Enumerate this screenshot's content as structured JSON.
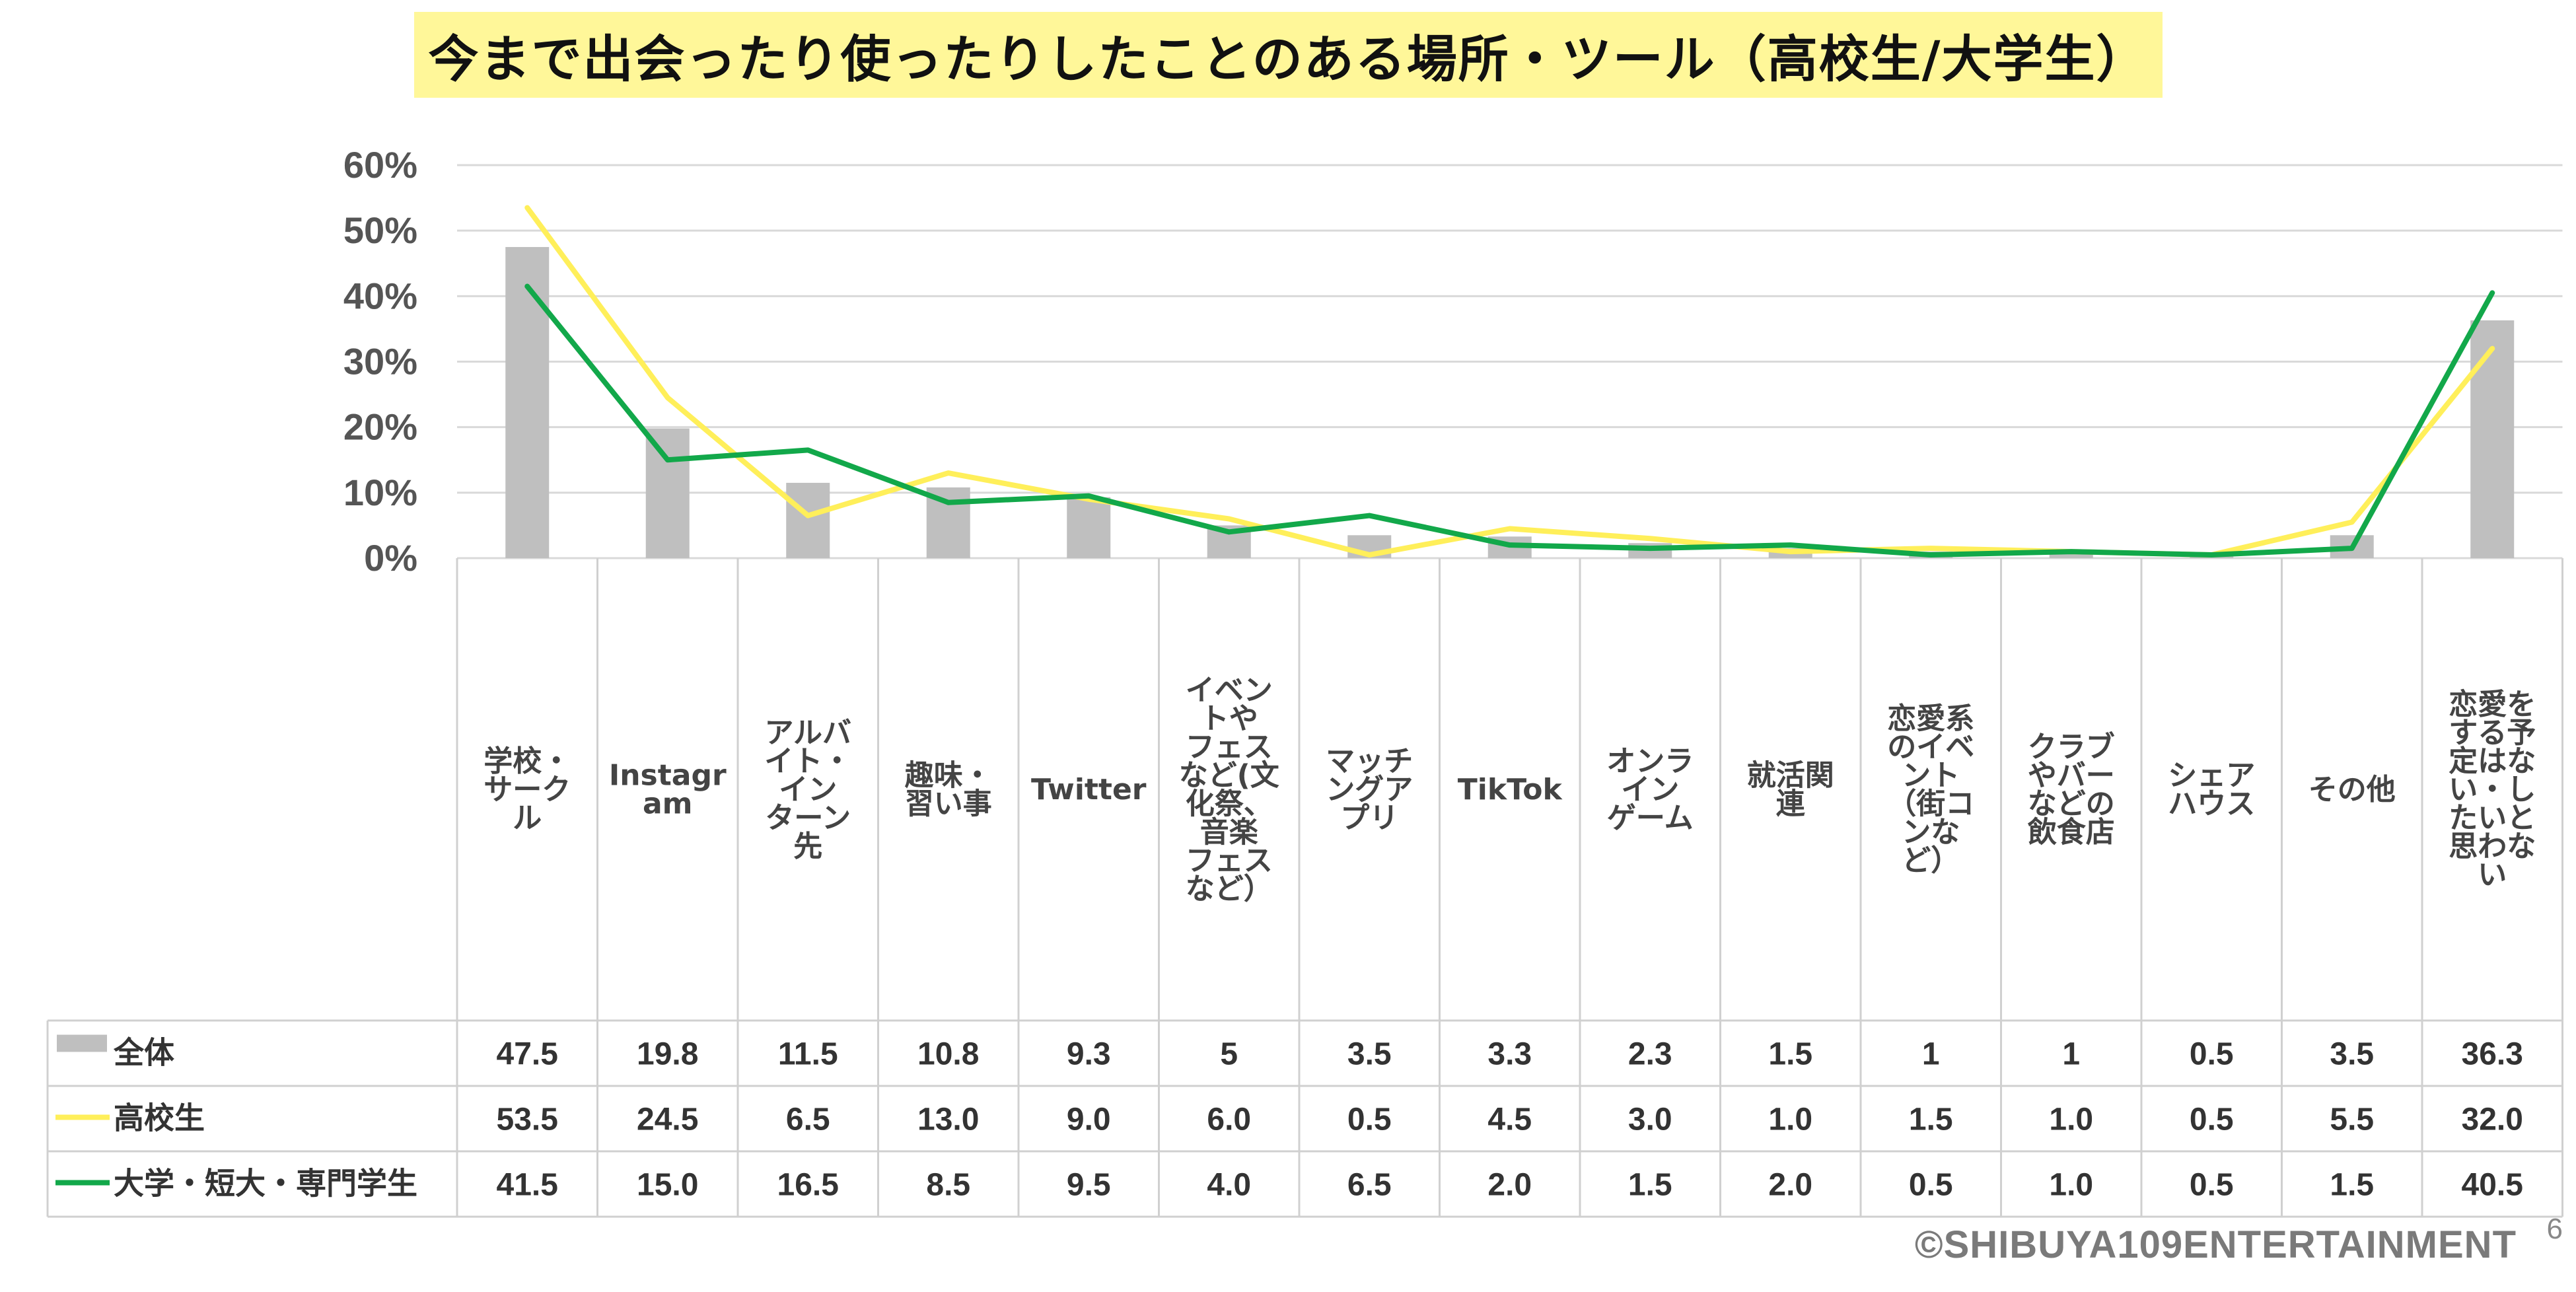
{
  "chart_data": {
    "type": "bar",
    "title": "今まで出会ったり使ったりしたことのある場所・ツール（高校生/大学生）",
    "ylim": [
      0,
      60
    ],
    "yticks": [
      "0%",
      "10%",
      "20%",
      "30%",
      "40%",
      "50%",
      "60%"
    ],
    "categories": [
      "学校・サークル",
      "Instagram",
      "アルバイト・インターン先",
      "趣味・習い事",
      "Twitter",
      "イベントやフェスなど(文化祭、音楽フェスなど）",
      "マッチングアプリ",
      "TikTok",
      "オンラインゲーム",
      "就活関連",
      "恋愛系のイベント（街コンなど）",
      "クラブやバーなどの飲食店",
      "シェアハウス",
      "その他",
      "恋愛をする予定はない・したいと思わない"
    ],
    "category_lines": [
      [
        "学校・",
        "サーク",
        "ル"
      ],
      [
        "Instagr",
        "am"
      ],
      [
        "アルバ",
        "イト・",
        "イン",
        "ターン",
        "先"
      ],
      [
        "趣味・",
        "習い事"
      ],
      [
        "Twitter"
      ],
      [
        "イベン",
        "トや",
        "フェス",
        "など(文",
        "化祭、",
        "音楽",
        "フェス",
        "など）"
      ],
      [
        "マッチ",
        "ングア",
        "プリ"
      ],
      [
        "TikTok"
      ],
      [
        "オンラ",
        "イン",
        "ゲーム"
      ],
      [
        "就活関",
        "連"
      ],
      [
        "恋愛系",
        "のイベ",
        "ント",
        "（街コ",
        "ンな",
        "ど）"
      ],
      [
        "クラブ",
        "やバー",
        "などの",
        "飲食店"
      ],
      [
        "シェア",
        "ハウス"
      ],
      [
        "その他"
      ],
      [
        "恋愛を",
        "する予",
        "定はな",
        "い・し",
        "たいと",
        "思わな",
        "い"
      ]
    ],
    "series": [
      {
        "name": "全体",
        "type": "bar",
        "color": "#bfbfbf",
        "values": [
          47.5,
          19.8,
          11.5,
          10.8,
          9.3,
          5,
          3.5,
          3.3,
          2.3,
          1.5,
          1,
          1,
          0.5,
          3.5,
          36.3
        ],
        "labels": [
          "47.5",
          "19.8",
          "11.5",
          "10.8",
          "9.3",
          "5",
          "3.5",
          "3.3",
          "2.3",
          "1.5",
          "1",
          "1",
          "0.5",
          "3.5",
          "36.3"
        ]
      },
      {
        "name": "高校生",
        "type": "line",
        "color": "#ffef5a",
        "values": [
          53.5,
          24.5,
          6.5,
          13.0,
          9.0,
          6.0,
          0.5,
          4.5,
          3.0,
          1.0,
          1.5,
          1.0,
          0.5,
          5.5,
          32.0
        ],
        "labels": [
          "53.5",
          "24.5",
          "6.5",
          "13.0",
          "9.0",
          "6.0",
          "0.5",
          "4.5",
          "3.0",
          "1.0",
          "1.5",
          "1.0",
          "0.5",
          "5.5",
          "32.0"
        ]
      },
      {
        "name": "大学・短大・専門学生",
        "type": "line",
        "color": "#12a84a",
        "values": [
          41.5,
          15.0,
          16.5,
          8.5,
          9.5,
          4.0,
          6.5,
          2.0,
          1.5,
          2.0,
          0.5,
          1.0,
          0.5,
          1.5,
          40.5
        ],
        "labels": [
          "41.5",
          "15.0",
          "16.5",
          "8.5",
          "9.5",
          "4.0",
          "6.5",
          "2.0",
          "1.5",
          "2.0",
          "0.5",
          "1.0",
          "0.5",
          "1.5",
          "40.5"
        ]
      }
    ]
  },
  "footer": {
    "copyright": "©SHIBUYA109ENTERTAINMENT",
    "page_number": "6"
  }
}
